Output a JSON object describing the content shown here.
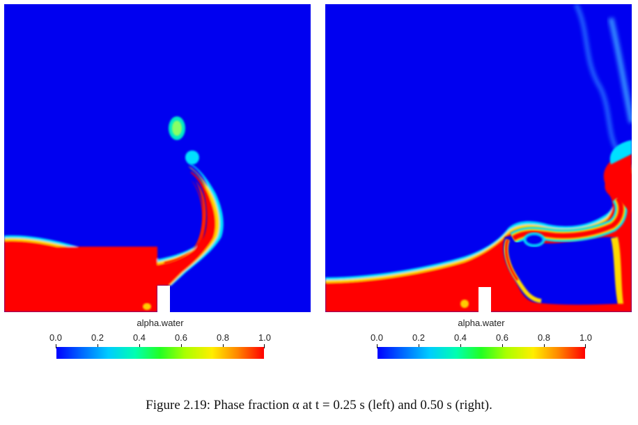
{
  "figure": {
    "caption": "Figure 2.19: Phase fraction α at t = 0.25 s (left) and 0.50 s (right)."
  },
  "panels": [
    {
      "colorbar": {
        "title": "alpha.water",
        "ticks": [
          "0.0",
          "0.2",
          "0.4",
          "0.6",
          "0.8",
          "1.0"
        ]
      }
    },
    {
      "colorbar": {
        "title": "alpha.water",
        "ticks": [
          "0.0",
          "0.2",
          "0.4",
          "0.6",
          "0.8",
          "1.0"
        ]
      }
    }
  ],
  "colormap": {
    "low": "#0000ff",
    "mid": "#22ff22",
    "high": "#ff0000"
  }
}
